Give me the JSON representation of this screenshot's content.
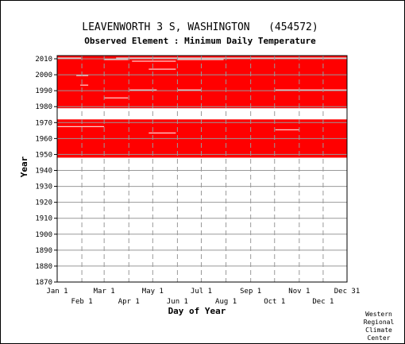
{
  "chart_data": {
    "type": "heatmap",
    "title": "LEAVENWORTH 3 S, WASHINGTON   (454572)",
    "subtitle": "Observed Element : Minimum Daily Temperature",
    "xlabel": "Day of Year",
    "ylabel": "Year",
    "ylim": [
      1870,
      2012
    ],
    "xlim": [
      1,
      365
    ],
    "grid": true,
    "y_ticks": [
      "2010",
      "2000",
      "1990",
      "1980",
      "1970",
      "1960",
      "1950",
      "1940",
      "1930",
      "1920",
      "1910",
      "1900",
      "1890",
      "1880",
      "1870"
    ],
    "x_ticks_upper": [
      "Jan 1",
      "Mar 1",
      "May 1",
      "Jul 1",
      "Sep 1",
      "Nov 1",
      "Dec 31"
    ],
    "x_ticks_lower": [
      "Feb 1",
      "Apr 1",
      "Jun 1",
      "Aug 1",
      "Oct 1",
      "Dec 1"
    ],
    "data_color": "#ff0000",
    "description_of_coverage": [
      {
        "years": [
          1948,
          1971
        ],
        "days": [
          1,
          365
        ],
        "status": "observed"
      },
      {
        "years": [
          1979,
          2011
        ],
        "days": [
          1,
          365
        ],
        "status": "observed"
      }
    ],
    "gaps": [
      {
        "year": 2010,
        "days": [
          1,
          31
        ]
      },
      {
        "year": 2010,
        "days": [
          75,
          365
        ]
      },
      {
        "year": 2009,
        "days": [
          60,
          90
        ]
      },
      {
        "year": 2009,
        "days": [
          152,
          210
        ]
      },
      {
        "year": 2008,
        "days": [
          95,
          150
        ]
      },
      {
        "year": 2003,
        "days": [
          116,
          150
        ]
      },
      {
        "year": 1999,
        "days": [
          25,
          40
        ]
      },
      {
        "year": 1993,
        "days": [
          30,
          40
        ]
      },
      {
        "year": 1990,
        "days": [
          92,
          126
        ]
      },
      {
        "year": 1990,
        "days": [
          152,
          182
        ]
      },
      {
        "year": 1990,
        "days": [
          275,
          365
        ]
      },
      {
        "year": 1985,
        "days": [
          60,
          90
        ]
      },
      {
        "year": 1972,
        "days": [
          1,
          30
        ]
      },
      {
        "year": 1967,
        "days": [
          1,
          60
        ]
      },
      {
        "year": 1965,
        "days": [
          275,
          305
        ]
      },
      {
        "year": 1963,
        "days": [
          116,
          150
        ]
      }
    ]
  },
  "credit": [
    "Western",
    "Regional",
    "Climate",
    "Center"
  ]
}
